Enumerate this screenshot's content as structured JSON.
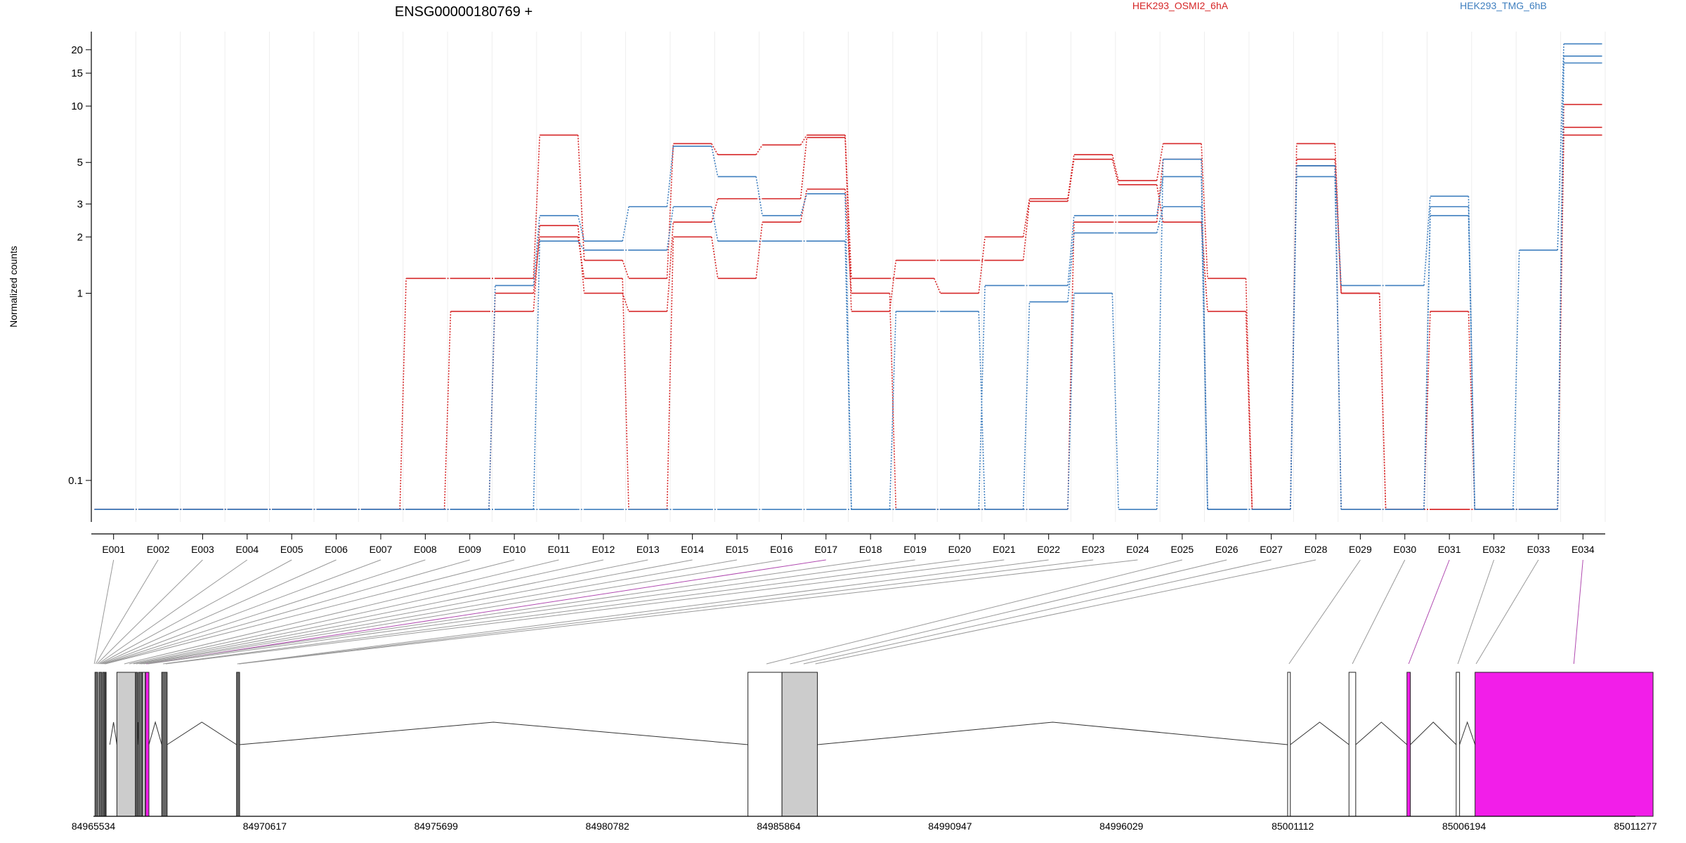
{
  "chart_data": {
    "type": "line",
    "title": "ENSG00000180769 +",
    "ylabel": "Normalized counts",
    "xlabel": "",
    "yscale": "log",
    "ylim": [
      0.06,
      25
    ],
    "y_ticks": [
      0.1,
      1,
      2,
      3,
      5,
      10,
      15,
      20
    ],
    "y_tick_labels": [
      "0.1",
      "1",
      "2",
      "3",
      "5",
      "10",
      "15",
      "20"
    ],
    "grid": true,
    "legend_position": "top",
    "categories": [
      "E001",
      "E002",
      "E003",
      "E004",
      "E005",
      "E006",
      "E007",
      "E008",
      "E009",
      "E010",
      "E011",
      "E012",
      "E013",
      "E014",
      "E015",
      "E016",
      "E017",
      "E018",
      "E019",
      "E020",
      "E021",
      "E022",
      "E023",
      "E024",
      "E025",
      "E026",
      "E027",
      "E028",
      "E029",
      "E030",
      "E031",
      "E032",
      "E033",
      "E034"
    ],
    "series": [
      {
        "name": "HEK293_OSMI2_6hA",
        "color": "#d62728",
        "values": [
          0.07,
          0.07,
          0.07,
          0.07,
          0.07,
          0.07,
          0.07,
          1.2,
          1.2,
          1.2,
          7.0,
          1.5,
          1.2,
          6.3,
          5.5,
          6.2,
          7.0,
          1.2,
          1.2,
          1.0,
          2.0,
          3.2,
          5.5,
          4.0,
          6.3,
          1.2,
          0.07,
          6.3,
          1.0,
          0.07,
          0.07,
          0.07,
          0.07,
          10.2
        ]
      },
      {
        "name": "HEK293_OSMI2_6hA",
        "color": "#d62728",
        "values": [
          0.07,
          0.07,
          0.07,
          0.07,
          0.07,
          0.07,
          0.07,
          0.07,
          0.8,
          0.8,
          2.3,
          1.0,
          0.8,
          2.4,
          3.2,
          3.2,
          6.8,
          0.8,
          1.5,
          1.5,
          1.5,
          3.1,
          5.2,
          3.8,
          2.4,
          0.8,
          0.07,
          5.2,
          1.0,
          0.07,
          0.8,
          0.07,
          0.07,
          7.7
        ]
      },
      {
        "name": "HEK293_OSMI2_6hA",
        "color": "#d62728",
        "values": [
          0.07,
          0.07,
          0.07,
          0.07,
          0.07,
          0.07,
          0.07,
          0.07,
          0.07,
          1.0,
          2.0,
          1.2,
          0.07,
          2.0,
          1.2,
          2.4,
          3.6,
          1.0,
          0.07,
          0.07,
          0.07,
          0.07,
          2.4,
          2.4,
          5.2,
          0.07,
          0.07,
          4.8,
          0.07,
          0.07,
          0.07,
          0.07,
          0.07,
          7.0
        ]
      },
      {
        "name": "HEK293_TMG_6hB",
        "color": "#3f7fbf",
        "values": [
          0.07,
          0.07,
          0.07,
          0.07,
          0.07,
          0.07,
          0.07,
          0.07,
          0.07,
          1.1,
          2.6,
          1.9,
          2.9,
          6.1,
          4.2,
          2.6,
          3.4,
          0.07,
          0.07,
          0.07,
          1.1,
          1.1,
          2.6,
          2.6,
          4.2,
          0.07,
          0.07,
          4.8,
          1.1,
          1.1,
          3.3,
          0.07,
          1.7,
          21.5
        ]
      },
      {
        "name": "HEK293_TMG_6hB",
        "color": "#3f7fbf",
        "values": [
          0.07,
          0.07,
          0.07,
          0.07,
          0.07,
          0.07,
          0.07,
          0.07,
          0.07,
          0.07,
          1.9,
          1.7,
          1.7,
          2.9,
          1.9,
          1.9,
          1.9,
          0.07,
          0.8,
          0.8,
          0.07,
          0.9,
          2.1,
          2.1,
          2.9,
          0.07,
          0.07,
          4.2,
          0.07,
          0.07,
          2.9,
          0.07,
          0.07,
          18.5
        ]
      },
      {
        "name": "HEK293_TMG_6hB",
        "color": "#3f7fbf",
        "values": [
          0.07,
          0.07,
          0.07,
          0.07,
          0.07,
          0.07,
          0.07,
          0.07,
          0.07,
          0.07,
          0.07,
          0.07,
          0.07,
          0.07,
          0.07,
          0.07,
          0.07,
          0.07,
          0.07,
          0.07,
          0.07,
          0.07,
          1.0,
          0.07,
          5.2,
          0.07,
          0.07,
          4.8,
          0.07,
          0.07,
          2.6,
          0.07,
          0.07,
          17.0
        ]
      }
    ]
  },
  "legend": [
    {
      "label": "HEK293_OSMI2_6hA",
      "color": "#d62728"
    },
    {
      "label": "HEK293_TMG_6hB",
      "color": "#3f7fbf"
    }
  ],
  "gene_model": {
    "axis_min": 84965534,
    "axis_max": 85011277,
    "tick_labels": [
      "84965534",
      "84970617",
      "84975699",
      "84980782",
      "84985864",
      "84990947",
      "84996029",
      "85001112",
      "85006194",
      "85011277"
    ],
    "exon_color": "#cccccc",
    "highlight_color": "#f21ee9",
    "exons": [
      {
        "start": 84965580,
        "end": 84965660,
        "fill": "dark"
      },
      {
        "start": 84965700,
        "end": 84965780,
        "fill": "dark"
      },
      {
        "start": 84965810,
        "end": 84965870,
        "fill": "dark"
      },
      {
        "start": 84965880,
        "end": 84965900,
        "fill": "dark"
      },
      {
        "start": 84966230,
        "end": 84966780,
        "fill": "gray"
      },
      {
        "start": 84966780,
        "end": 84966840,
        "fill": "dark"
      },
      {
        "start": 84966870,
        "end": 84966980,
        "fill": "dark"
      },
      {
        "start": 84966990,
        "end": 84967070,
        "fill": "gray"
      },
      {
        "start": 84967080,
        "end": 84967180,
        "fill": "highlight"
      },
      {
        "start": 84967560,
        "end": 84967720,
        "fill": "dark"
      },
      {
        "start": 84969780,
        "end": 84969870,
        "fill": "dark"
      },
      {
        "start": 84984950,
        "end": 84985960,
        "fill": "white"
      },
      {
        "start": 84985960,
        "end": 84987010,
        "fill": "gray"
      },
      {
        "start": 85000960,
        "end": 85001040,
        "fill": "white"
      },
      {
        "start": 85002780,
        "end": 85002980,
        "fill": "white"
      },
      {
        "start": 85004500,
        "end": 85004600,
        "fill": "highlight"
      },
      {
        "start": 85005960,
        "end": 85006060,
        "fill": "white"
      },
      {
        "start": 85006520,
        "end": 85011800,
        "fill": "highlight"
      }
    ],
    "introns": [
      {
        "start": 84966020,
        "end": 84966230,
        "peak": 84966130
      },
      {
        "start": 84966840,
        "end": 84966870,
        "peak": 84966855
      },
      {
        "start": 84967180,
        "end": 84967560,
        "peak": 84967370
      },
      {
        "start": 84967720,
        "end": 84969780,
        "peak": 84968750
      },
      {
        "start": 84969870,
        "end": 84984950,
        "peak": 84977400
      },
      {
        "start": 84987010,
        "end": 85000960,
        "peak": 84993990
      },
      {
        "start": 85001040,
        "end": 85002780,
        "peak": 85001910
      },
      {
        "start": 85002980,
        "end": 85004500,
        "peak": 85003740
      },
      {
        "start": 85004600,
        "end": 85005960,
        "peak": 85005280
      },
      {
        "start": 85006060,
        "end": 85006520,
        "peak": 85006290
      }
    ],
    "connectors": [
      {
        "from": 0,
        "to": 84965560,
        "color": "gray"
      },
      {
        "from": 1,
        "to": 84965600,
        "color": "gray"
      },
      {
        "from": 2,
        "to": 84965640,
        "color": "gray"
      },
      {
        "from": 3,
        "to": 84965680,
        "color": "gray"
      },
      {
        "from": 4,
        "to": 84965720,
        "color": "gray"
      },
      {
        "from": 5,
        "to": 84965760,
        "color": "gray"
      },
      {
        "from": 6,
        "to": 84965800,
        "color": "gray"
      },
      {
        "from": 7,
        "to": 84965840,
        "color": "gray"
      },
      {
        "from": 8,
        "to": 84965870,
        "color": "gray"
      },
      {
        "from": 9,
        "to": 84965890,
        "color": "gray"
      },
      {
        "from": 10,
        "to": 84966450,
        "color": "gray"
      },
      {
        "from": 11,
        "to": 84966600,
        "color": "gray"
      },
      {
        "from": 12,
        "to": 84966720,
        "color": "gray"
      },
      {
        "from": 13,
        "to": 84966800,
        "color": "gray"
      },
      {
        "from": 14,
        "to": 84966900,
        "color": "gray"
      },
      {
        "from": 15,
        "to": 84966950,
        "color": "gray"
      },
      {
        "from": 16,
        "to": 84967100,
        "color": "highlight"
      },
      {
        "from": 17,
        "to": 84967020,
        "color": "gray"
      },
      {
        "from": 18,
        "to": 84967150,
        "color": "gray"
      },
      {
        "from": 19,
        "to": 84967600,
        "color": "gray"
      },
      {
        "from": 20,
        "to": 84967680,
        "color": "gray"
      },
      {
        "from": 21,
        "to": 84969800,
        "color": "gray"
      },
      {
        "from": 22,
        "to": 84969850,
        "color": "gray"
      },
      {
        "from": 23,
        "to": 84969860,
        "color": "gray"
      },
      {
        "from": 24,
        "to": 84985500,
        "color": "gray"
      },
      {
        "from": 25,
        "to": 84986200,
        "color": "gray"
      },
      {
        "from": 26,
        "to": 84986600,
        "color": "gray"
      },
      {
        "from": 27,
        "to": 84986950,
        "color": "gray"
      },
      {
        "from": 28,
        "to": 85001000,
        "color": "gray"
      },
      {
        "from": 29,
        "to": 85002880,
        "color": "gray"
      },
      {
        "from": 30,
        "to": 85004550,
        "color": "highlight"
      },
      {
        "from": 31,
        "to": 85006010,
        "color": "gray"
      },
      {
        "from": 32,
        "to": 85006550,
        "color": "gray"
      },
      {
        "from": 33,
        "to": 85009450,
        "color": "highlight"
      }
    ]
  }
}
